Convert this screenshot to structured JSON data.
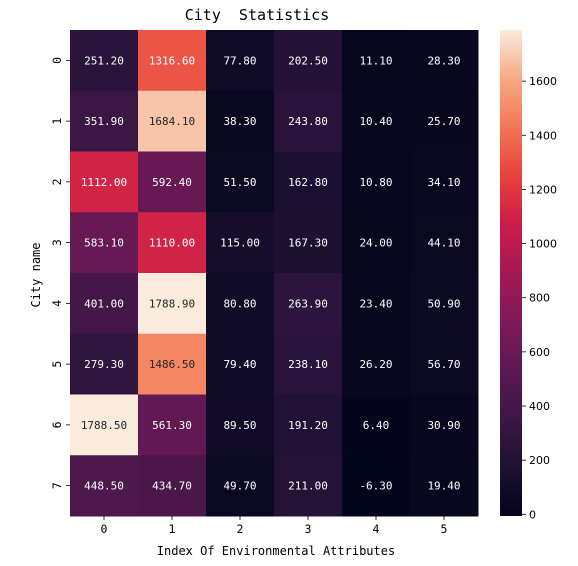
{
  "chart_data": {
    "type": "heatmap",
    "title": "City  Statistics",
    "xlabel": "Index Of Environmental Attributes",
    "ylabel": "City name",
    "x_categories": [
      "0",
      "1",
      "2",
      "3",
      "4",
      "5"
    ],
    "y_categories": [
      "0",
      "1",
      "2",
      "3",
      "4",
      "5",
      "6",
      "7"
    ],
    "values": [
      [
        251.2,
        1316.6,
        77.8,
        202.5,
        11.1,
        28.3
      ],
      [
        351.9,
        1684.1,
        38.3,
        243.8,
        10.4,
        25.7
      ],
      [
        1112.0,
        592.4,
        51.5,
        162.8,
        10.8,
        34.1
      ],
      [
        583.1,
        1110.0,
        115.0,
        167.3,
        24.0,
        44.1
      ],
      [
        401.0,
        1788.9,
        80.8,
        263.9,
        23.4,
        50.9
      ],
      [
        279.3,
        1486.5,
        79.4,
        238.1,
        26.2,
        56.7
      ],
      [
        1788.5,
        561.3,
        89.5,
        191.2,
        6.4,
        30.9
      ],
      [
        448.5,
        434.7,
        49.7,
        211.0,
        -6.3,
        19.4
      ]
    ],
    "cell_labels": [
      [
        "251.20",
        "1316.60",
        "77.80",
        "202.50",
        "11.10",
        "28.30"
      ],
      [
        "351.90",
        "1684.10",
        "38.30",
        "243.80",
        "10.40",
        "25.70"
      ],
      [
        "1112.00",
        "592.40",
        "51.50",
        "162.80",
        "10.80",
        "34.10"
      ],
      [
        "583.10",
        "1110.00",
        "115.00",
        "167.30",
        "24.00",
        "44.10"
      ],
      [
        "401.00",
        "1788.90",
        "80.80",
        "263.90",
        "23.40",
        "50.90"
      ],
      [
        "279.30",
        "1486.50",
        "79.40",
        "238.10",
        "26.20",
        "56.70"
      ],
      [
        "1788.50",
        "561.30",
        "89.50",
        "191.20",
        "6.40",
        "30.90"
      ],
      [
        "448.50",
        "434.70",
        "49.70",
        "211.00",
        "-6.30",
        "19.40"
      ]
    ],
    "colormap": "rocket",
    "color_range": [
      -6.3,
      1788.9
    ],
    "colorbar_ticks": [
      0,
      200,
      400,
      600,
      800,
      1000,
      1200,
      1400,
      1600
    ],
    "colorbar_tick_labels": [
      "0",
      "200",
      "400",
      "600",
      "800",
      "1000",
      "1200",
      "1400",
      "1600"
    ],
    "grid": false,
    "legend": "colorbar-right"
  }
}
